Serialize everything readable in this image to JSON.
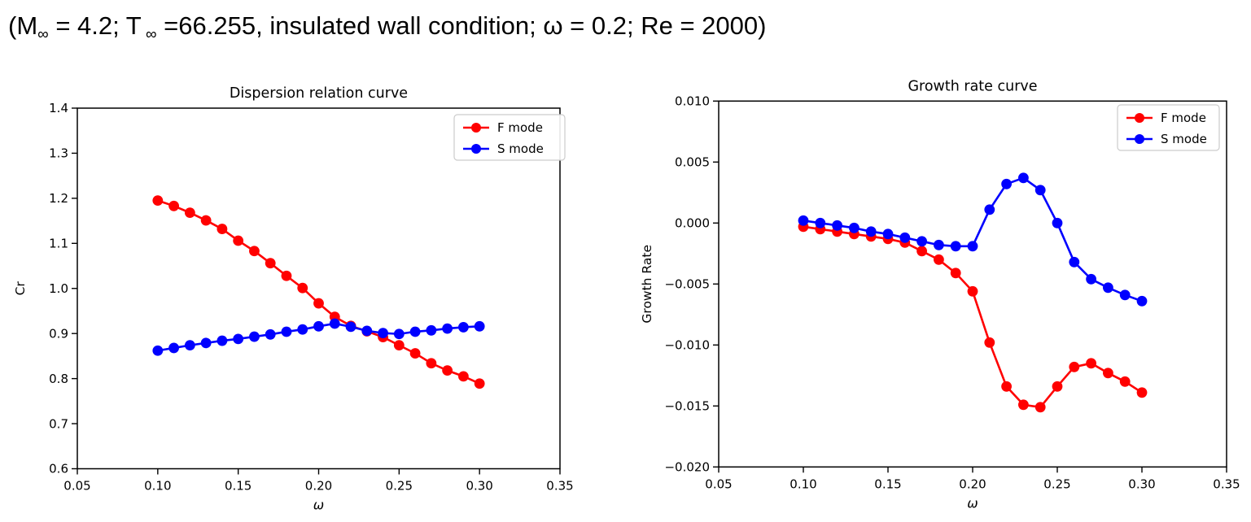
{
  "header": {
    "segments": [
      {
        "text": "(M"
      },
      {
        "text": "∞",
        "subscript": true
      },
      {
        "text": " = 4.2; T"
      },
      {
        "text": " ∞",
        "subscript": true
      },
      {
        "text": " =66.255, insulated wall condition; ω = 0.2; Re = 2000)"
      }
    ]
  },
  "chart_data": [
    {
      "type": "line",
      "title": "Dispersion relation curve",
      "xlabel": "ω",
      "ylabel": "Cr",
      "xlim": [
        0.05,
        0.35
      ],
      "ylim": [
        0.6,
        1.4
      ],
      "grid": false,
      "legend_position": "upper right",
      "xticks": {
        "values": [
          0.05,
          0.1,
          0.15,
          0.2,
          0.25,
          0.3,
          0.35
        ],
        "labels": [
          "0.05",
          "0.10",
          "0.15",
          "0.20",
          "0.25",
          "0.30",
          "0.35"
        ]
      },
      "yticks": {
        "values": [
          0.6,
          0.7,
          0.8,
          0.9,
          1.0,
          1.1,
          1.2,
          1.3,
          1.4
        ],
        "labels": [
          "0.6",
          "0.7",
          "0.8",
          "0.9",
          "1.0",
          "1.1",
          "1.2",
          "1.3",
          "1.4"
        ]
      },
      "x": [
        0.1,
        0.11,
        0.12,
        0.13,
        0.14,
        0.15,
        0.16,
        0.17,
        0.18,
        0.19,
        0.2,
        0.21,
        0.22,
        0.23,
        0.24,
        0.25,
        0.26,
        0.27,
        0.28,
        0.29,
        0.3
      ],
      "series": [
        {
          "name": "F mode",
          "color": "#ff0000",
          "values": [
            1.195,
            1.183,
            1.168,
            1.151,
            1.132,
            1.106,
            1.083,
            1.056,
            1.028,
            1.001,
            0.967,
            0.937,
            0.917,
            0.905,
            0.892,
            0.874,
            0.856,
            0.834,
            0.818,
            0.805,
            0.789
          ]
        },
        {
          "name": "S mode",
          "color": "#0000ff",
          "values": [
            0.862,
            0.868,
            0.874,
            0.879,
            0.884,
            0.888,
            0.893,
            0.898,
            0.904,
            0.909,
            0.916,
            0.922,
            0.915,
            0.906,
            0.901,
            0.899,
            0.904,
            0.907,
            0.911,
            0.914,
            0.916
          ]
        }
      ]
    },
    {
      "type": "line",
      "title": "Growth rate curve",
      "xlabel": "ω",
      "ylabel": "Growth Rate",
      "xlim": [
        0.05,
        0.35
      ],
      "ylim": [
        -0.02,
        0.01
      ],
      "grid": false,
      "legend_position": "upper right",
      "xticks": {
        "values": [
          0.05,
          0.1,
          0.15,
          0.2,
          0.25,
          0.3,
          0.35
        ],
        "labels": [
          "0.05",
          "0.10",
          "0.15",
          "0.20",
          "0.25",
          "0.30",
          "0.35"
        ]
      },
      "yticks": {
        "values": [
          0.01,
          0.005,
          0.0,
          -0.005,
          -0.01,
          -0.015,
          -0.02
        ],
        "labels": [
          "0.010",
          "0.005",
          "0.000",
          "−0.005",
          "−0.010",
          "−0.015",
          "−0.020"
        ]
      },
      "x": [
        0.1,
        0.11,
        0.12,
        0.13,
        0.14,
        0.15,
        0.16,
        0.17,
        0.18,
        0.19,
        0.2,
        0.21,
        0.22,
        0.23,
        0.24,
        0.25,
        0.26,
        0.27,
        0.28,
        0.29,
        0.3
      ],
      "series": [
        {
          "name": "F mode",
          "color": "#ff0000",
          "values": [
            -0.0003,
            -0.0005,
            -0.0007,
            -0.0009,
            -0.0011,
            -0.0013,
            -0.0016,
            -0.0023,
            -0.003,
            -0.0041,
            -0.0056,
            -0.0098,
            -0.0134,
            -0.0149,
            -0.0151,
            -0.0134,
            -0.0118,
            -0.0115,
            -0.0123,
            -0.013,
            -0.0139
          ]
        },
        {
          "name": "S mode",
          "color": "#0000ff",
          "values": [
            0.0002,
            0.0,
            -0.0002,
            -0.0004,
            -0.0007,
            -0.0009,
            -0.0012,
            -0.0015,
            -0.0018,
            -0.0019,
            -0.0019,
            0.0011,
            0.0032,
            0.0037,
            0.0027,
            0.0,
            -0.0032,
            -0.0046,
            -0.0053,
            -0.0059,
            -0.0064
          ]
        }
      ]
    }
  ]
}
